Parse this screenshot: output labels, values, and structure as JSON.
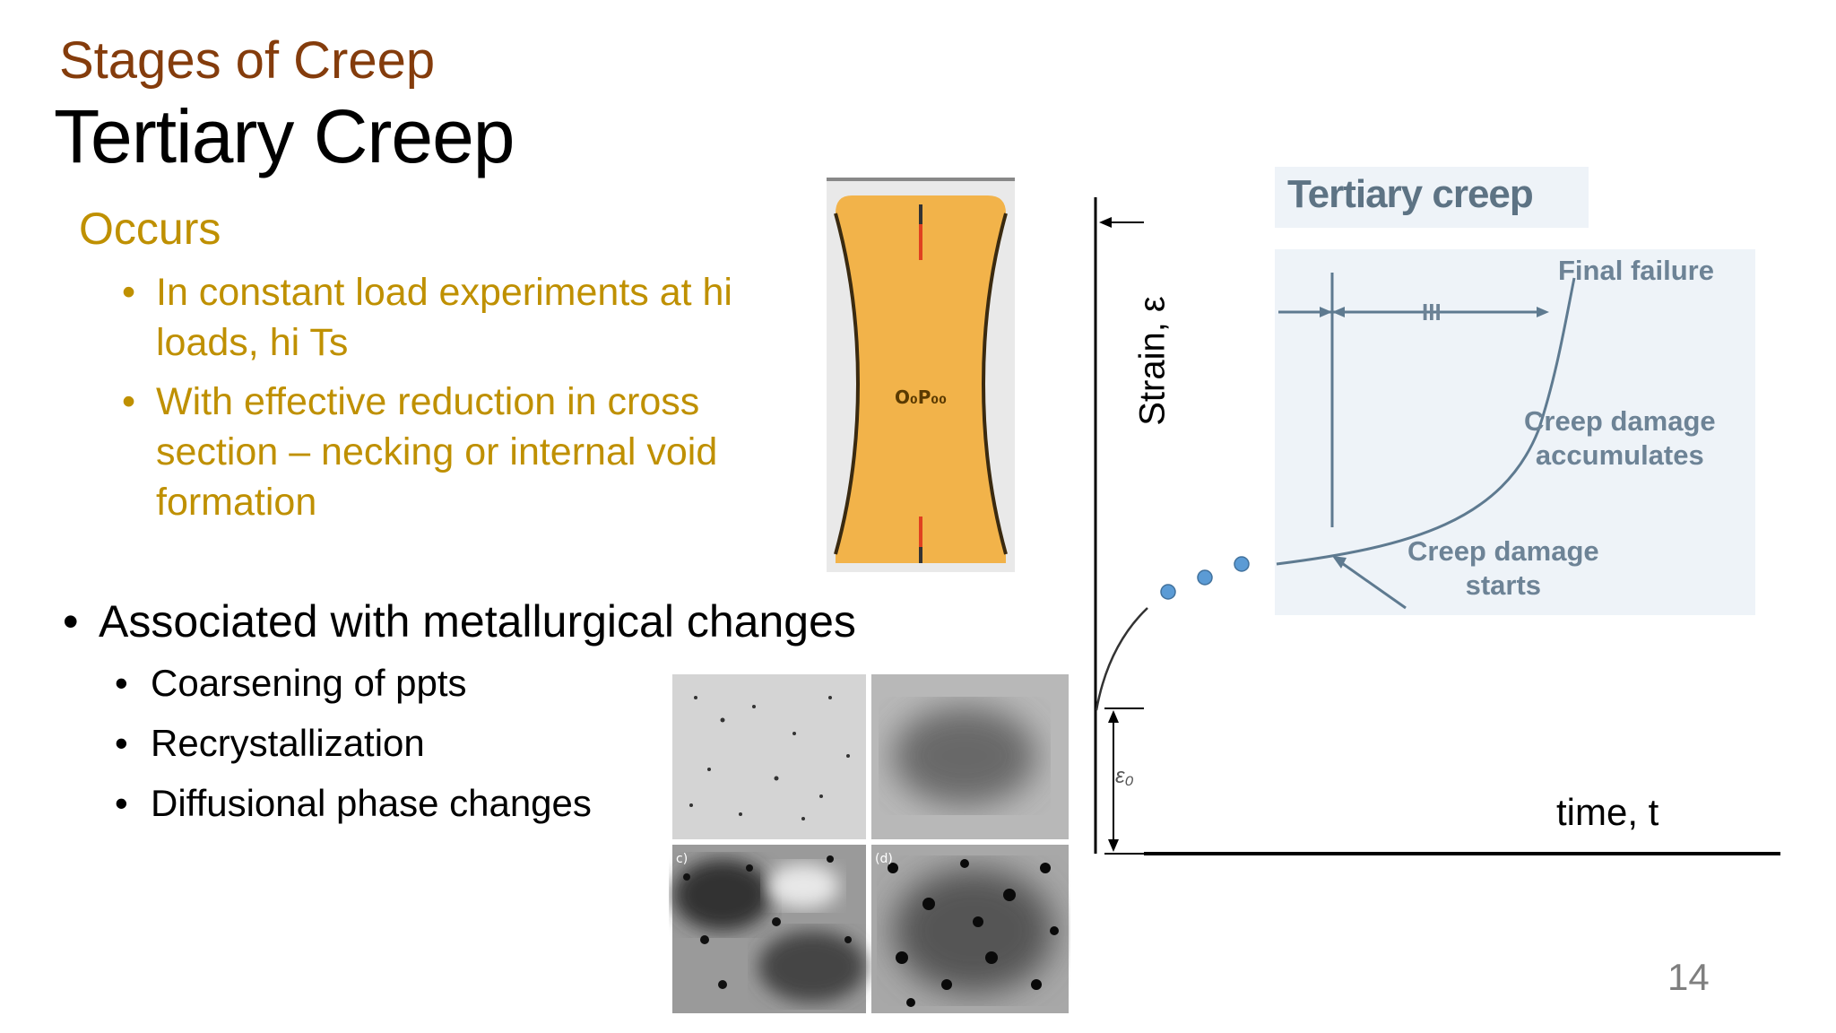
{
  "slide": {
    "supertitle": "Stages of Creep",
    "title": "Tertiary Creep",
    "occurs": {
      "heading": "Occurs",
      "items": [
        "In constant load experiments at hi loads, hi Ts",
        "With effective reduction in cross section – necking or internal void formation"
      ]
    },
    "associated": {
      "bullet": "•",
      "text": "Associated with metallurgical changes",
      "items": [
        "Coarsening of ppts",
        "Recrystallization",
        "Diffusional phase changes"
      ]
    },
    "page_number": "14"
  },
  "specimen": {
    "void_label": "O₀P₀₀"
  },
  "micrographs": {
    "panel_labels": [
      "",
      "",
      "c)",
      "(d)"
    ]
  },
  "diagram": {
    "title": "Tertiary creep",
    "final_failure": "Final failure",
    "region": "III",
    "damage_accumulates": [
      "Creep damage",
      "accumulates"
    ],
    "damage_starts": [
      "Creep damage",
      "starts"
    ]
  },
  "axes": {
    "ylabel": "Strain, ε",
    "xlabel": "time, t",
    "eps0": "ε₀"
  },
  "colors": {
    "title_brown": "#843C0C",
    "gold_text": "#BF9000",
    "panel_bg": "#eef3f8",
    "curve": "#5e7a90",
    "dot": "#5b9bd5",
    "specimen_fill": "#F2B34A"
  }
}
